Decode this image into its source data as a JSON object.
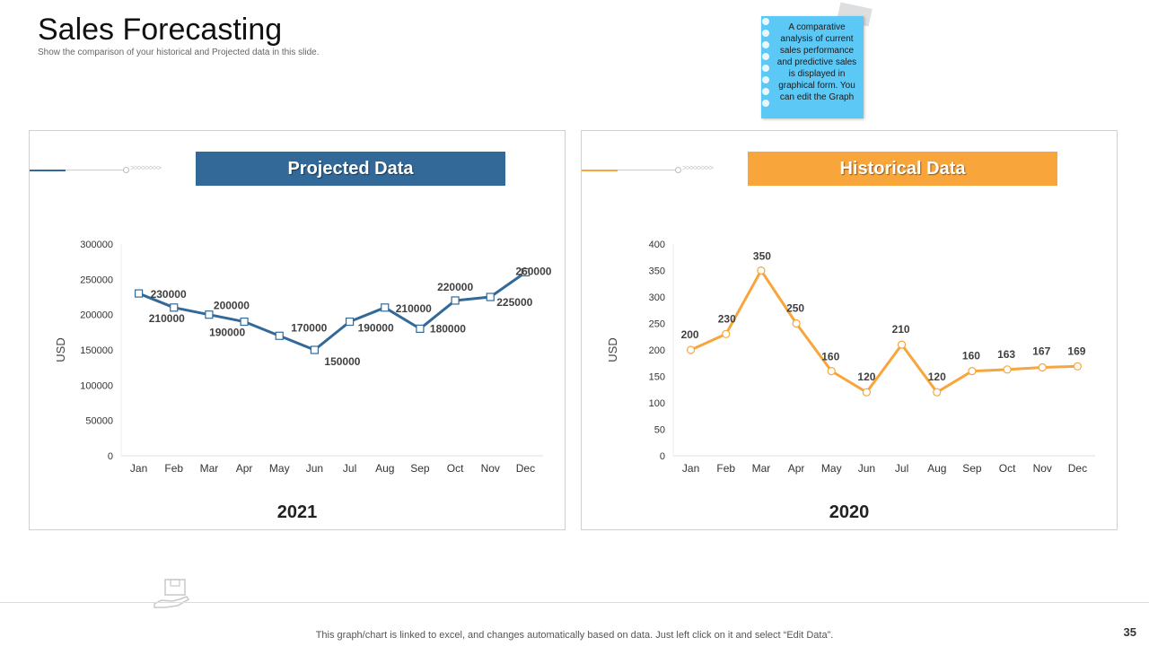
{
  "header": {
    "title": "Sales Forecasting",
    "subtitle": "Show the comparison of your historical and Projected data in this slide."
  },
  "note": {
    "text": "A comparative analysis of current sales performance and predictive sales is displayed in graphical form. You can edit the Graph"
  },
  "left_panel": {
    "banner": "Projected Data",
    "year": "2021"
  },
  "right_panel": {
    "banner": "Historical Data",
    "year": "2020"
  },
  "footer": {
    "text": "This graph/chart is linked to excel, and changes automatically based on data. Just left click on it and select “Edit Data”.",
    "page_number": "35"
  },
  "colors": {
    "projected": "#336998",
    "historical": "#f8a53b"
  },
  "chart_data": [
    {
      "type": "line",
      "title": "Projected Data",
      "categories": [
        "Jan",
        "Feb",
        "Mar",
        "Apr",
        "May",
        "Jun",
        "Jul",
        "Aug",
        "Sep",
        "Oct",
        "Nov",
        "Dec"
      ],
      "values": [
        230000,
        210000,
        200000,
        190000,
        170000,
        150000,
        190000,
        210000,
        180000,
        220000,
        225000,
        260000
      ],
      "data_labels": [
        "230000",
        "210000",
        "200000",
        "190000",
        "170000",
        "150000",
        "190000",
        "210000",
        "180000",
        "220000",
        "225000",
        "260000"
      ],
      "ylabel": "USD",
      "ylim": [
        0,
        300000
      ],
      "yticks": [
        "0",
        "50000",
        "100000",
        "150000",
        "200000",
        "250000",
        "300000"
      ],
      "marker": "square",
      "legend": "none"
    },
    {
      "type": "line",
      "title": "Historical Data",
      "categories": [
        "Jan",
        "Feb",
        "Mar",
        "Apr",
        "May",
        "Jun",
        "Jul",
        "Aug",
        "Sep",
        "Oct",
        "Nov",
        "Dec"
      ],
      "values": [
        200,
        230,
        350,
        250,
        160,
        120,
        210,
        120,
        160,
        163,
        167,
        169
      ],
      "data_labels": [
        "200",
        "230",
        "350",
        "250",
        "160",
        "120",
        "210",
        "120",
        "160",
        "163",
        "167",
        "169"
      ],
      "ylabel": "USD",
      "ylim": [
        0,
        400
      ],
      "yticks": [
        "0",
        "50",
        "100",
        "150",
        "200",
        "250",
        "300",
        "350",
        "400"
      ],
      "marker": "circle",
      "legend": "none"
    }
  ]
}
